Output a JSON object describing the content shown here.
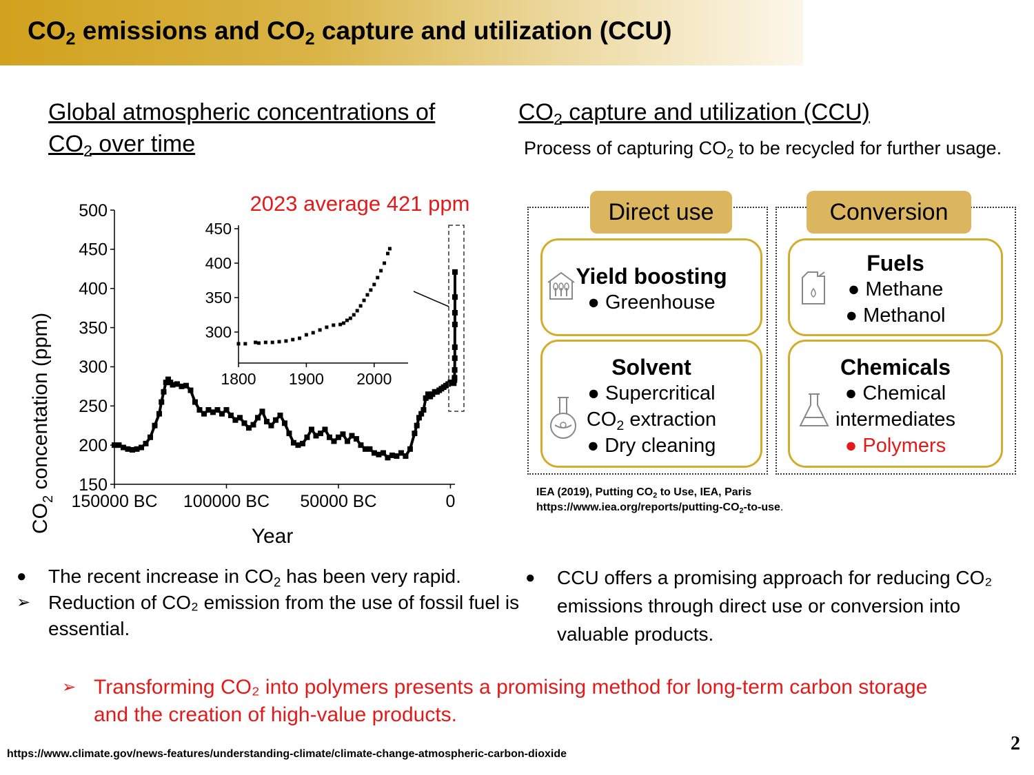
{
  "slide": {
    "title_a": "CO",
    "title_sub1": "2",
    "title_b": " emissions and CO",
    "title_sub2": "2",
    "title_c": " capture and utilization (CCU)",
    "page_number": "2",
    "source_url": "https://www.climate.gov/news-features/understanding-climate/climate-change-atmospheric-carbon-dioxide"
  },
  "left": {
    "heading_line1": "Global atmospheric concentrations of",
    "heading_line2_a": "CO",
    "heading_line2_sub": "2",
    "heading_line2_b": " over time"
  },
  "chart_data": [
    {
      "type": "scatter",
      "title": "",
      "xlabel": "Year",
      "ylabel_a": "CO",
      "ylabel_sub": "2",
      "ylabel_b": " concentation (ppm)",
      "xlim": [
        -150000,
        2023
      ],
      "ylim": [
        150,
        500
      ],
      "x_ticks": [
        -150000,
        -100000,
        -50000,
        0
      ],
      "x_tick_labels": [
        "150000 BC",
        "100000 BC",
        "50000 BC",
        "0"
      ],
      "y_ticks": [
        150,
        200,
        250,
        300,
        350,
        400,
        450,
        500
      ],
      "y_tick_labels": [
        "150",
        "200",
        "250",
        "300",
        "350",
        "400",
        "450",
        "500"
      ],
      "series": [
        {
          "x": [
            -150000,
            -148000,
            -146000,
            -144000,
            -142000,
            -140000,
            -138000,
            -136000,
            -134000,
            -132000,
            -130000,
            -129000,
            -128000,
            -127000,
            -126000,
            -125000,
            -124000,
            -122000,
            -120000,
            -118000,
            -116000,
            -114000,
            -112000,
            -110000,
            -108000,
            -106000,
            -104000,
            -102000,
            -100000,
            -98000,
            -96000,
            -94000,
            -92000,
            -90000,
            -88000,
            -86000,
            -84000,
            -82000,
            -80000,
            -78000,
            -76000,
            -74000,
            -72000,
            -70000,
            -68000,
            -66000,
            -64000,
            -62000,
            -60000,
            -58000,
            -56000,
            -54000,
            -52000,
            -50000,
            -48000,
            -46000,
            -44000,
            -42000,
            -40000,
            -38000,
            -36000,
            -34000,
            -32000,
            -30000,
            -28000,
            -26000,
            -24000,
            -22000,
            -20000,
            -18000,
            -16000,
            -15000,
            -14000,
            -13000,
            -12000,
            -11000,
            -10000,
            -9000,
            -8000,
            -7000,
            -6000,
            -5000,
            -4000,
            -3000,
            -2000,
            -1000,
            0,
            500,
            1000,
            1500,
            1800,
            1850,
            1900,
            1950,
            1970,
            1990,
            2000,
            2010,
            2023
          ],
          "y": [
            200,
            200,
            197,
            195,
            194,
            195,
            197,
            202,
            210,
            225,
            240,
            255,
            268,
            280,
            284,
            280,
            277,
            278,
            275,
            276,
            270,
            255,
            245,
            240,
            245,
            242,
            245,
            240,
            245,
            238,
            232,
            235,
            228,
            222,
            226,
            235,
            243,
            230,
            225,
            232,
            238,
            228,
            215,
            203,
            200,
            202,
            210,
            220,
            212,
            215,
            220,
            210,
            205,
            210,
            214,
            205,
            212,
            208,
            200,
            195,
            195,
            190,
            188,
            190,
            184,
            187,
            186,
            190,
            186,
            195,
            215,
            225,
            235,
            240,
            245,
            260,
            265,
            262,
            265,
            268,
            268,
            270,
            272,
            274,
            276,
            278,
            280,
            280,
            280,
            279,
            283,
            286,
            296,
            311,
            325,
            354,
            369,
            389,
            421
          ]
        }
      ]
    },
    {
      "type": "scatter",
      "title": "2023 average 421 ppm",
      "xlim": [
        1800,
        2050
      ],
      "ylim": [
        255,
        455
      ],
      "x_ticks": [
        1800,
        1900,
        2000
      ],
      "x_tick_labels": [
        "1800",
        "1900",
        "2000"
      ],
      "y_ticks": [
        300,
        350,
        400,
        450
      ],
      "y_tick_labels": [
        "300",
        "350",
        "400",
        "450"
      ],
      "series": [
        {
          "x": [
            1800,
            1810,
            1825,
            1830,
            1840,
            1850,
            1860,
            1870,
            1880,
            1890,
            1900,
            1910,
            1920,
            1930,
            1940,
            1950,
            1955,
            1960,
            1965,
            1970,
            1975,
            1980,
            1985,
            1990,
            1995,
            2000,
            2005,
            2010,
            2015,
            2020,
            2023
          ],
          "y": [
            283,
            283,
            285,
            284,
            285,
            285,
            286,
            287,
            289,
            291,
            296,
            299,
            303,
            307,
            310,
            311,
            313,
            317,
            320,
            325,
            331,
            338,
            346,
            354,
            361,
            369,
            379,
            389,
            400,
            414,
            421
          ]
        }
      ]
    }
  ],
  "right": {
    "heading_a": "CO",
    "heading_sub": "2",
    "heading_b": " capture and utilization (CCU)",
    "desc_a": "Process of capturing CO",
    "desc_sub": "2",
    "desc_b": " to be recycled for further usage.",
    "direct_use_label": "Direct use",
    "conversion_label": "Conversion",
    "yield": {
      "title": "Yield boosting",
      "item1": "Greenhouse"
    },
    "solvent": {
      "title": "Solvent",
      "item1": "Supercritical",
      "item1_cont_a": "CO",
      "item1_cont_sub": "2",
      "item1_cont_b": " extraction",
      "item2": "Dry cleaning"
    },
    "fuels": {
      "title": "Fuels",
      "item1": "Methane",
      "item2": "Methanol"
    },
    "chemicals": {
      "title": "Chemicals",
      "item1": "Chemical",
      "item1_cont": "intermediates",
      "item2": "Polymers"
    },
    "ref_line1_a": "IEA (2019), Putting CO",
    "ref_line1_sub": "2",
    "ref_line1_b": " to Use, IEA, Paris",
    "ref_line2_a": "https://www.iea.org/reports/putting-CO",
    "ref_line2_sub": "2",
    "ref_line2_b": "-to-use",
    "ref_line2_c": "."
  },
  "bullets_left": {
    "b1_a": "The recent increase in CO",
    "b1_sub": "2",
    "b1_b": " has been very rapid.",
    "b2": "Reduction of CO₂ emission from the use of fossil fuel is essential."
  },
  "bullets_right": {
    "b1": "CCU offers a promising approach for reducing CO₂ emissions through direct use or conversion into valuable products."
  },
  "conclusion": "Transforming CO₂ into polymers presents a promising method for long-term carbon storage and the creation of high-value products.",
  "colors": {
    "gold": "#d4ac2b",
    "pill": "#dcb65f",
    "red": "#e31a1a"
  },
  "icons": [
    "greenhouse-icon",
    "flask-icon",
    "fuel-can-icon",
    "beaker-icon",
    "bullet-dot-icon",
    "arrow-bullet-icon"
  ]
}
